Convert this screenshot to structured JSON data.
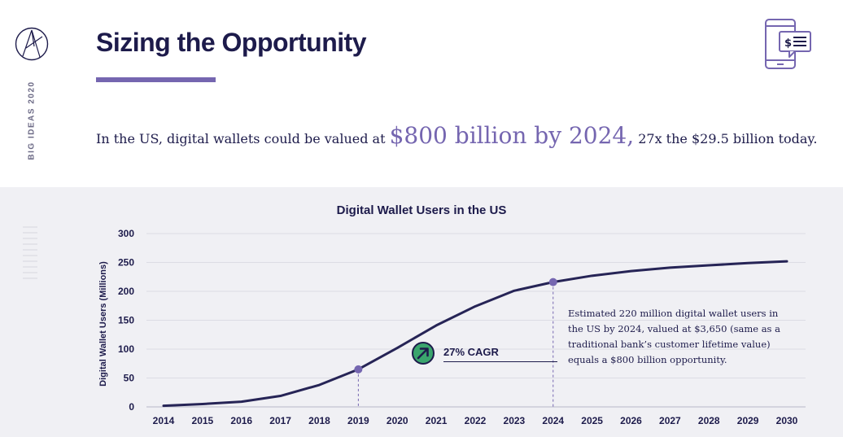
{
  "header": {
    "title": "Sizing the Opportunity",
    "side_label": "BIG IDEAS 2020",
    "headline_prefix": "In the US, digital wallets could be valued at",
    "headline_highlight": "$800 billion by 2024,",
    "headline_suffix": "27x the $29.5 billion today.",
    "accent_color": "#7566b0",
    "text_color": "#1d1b4b"
  },
  "icons": {
    "logo": "ark-logo-icon",
    "device": "mobile-payment-icon",
    "cagr": "arrow-up-right-icon"
  },
  "annotations": {
    "cagr_label": "27% CAGR",
    "note": "Estimated 220 million digital wallet users in the US by 2024, valued at $3,650 (same as a traditional bank’s customer lifetime value) equals a $800 billion opportunity."
  },
  "chart_data": {
    "type": "line",
    "title": "Digital Wallet Users in the US",
    "xlabel": "",
    "ylabel": "Digital Wallet Users (Millions)",
    "x": [
      2014,
      2015,
      2016,
      2017,
      2018,
      2019,
      2020,
      2021,
      2022,
      2023,
      2024,
      2025,
      2026,
      2027,
      2028,
      2029,
      2030
    ],
    "series": [
      {
        "name": "Digital Wallet Users",
        "values": [
          2,
          5,
          9,
          19,
          38,
          65,
          102,
          141,
          174,
          201,
          216,
          227,
          235,
          241,
          245,
          249,
          252
        ]
      }
    ],
    "yticks": [
      0,
      50,
      100,
      150,
      200,
      250,
      300
    ],
    "ylim": [
      0,
      300
    ],
    "highlighted_years": [
      2019,
      2024
    ],
    "grid": true,
    "line_color": "#262456",
    "marker_color": "#7566b0"
  }
}
